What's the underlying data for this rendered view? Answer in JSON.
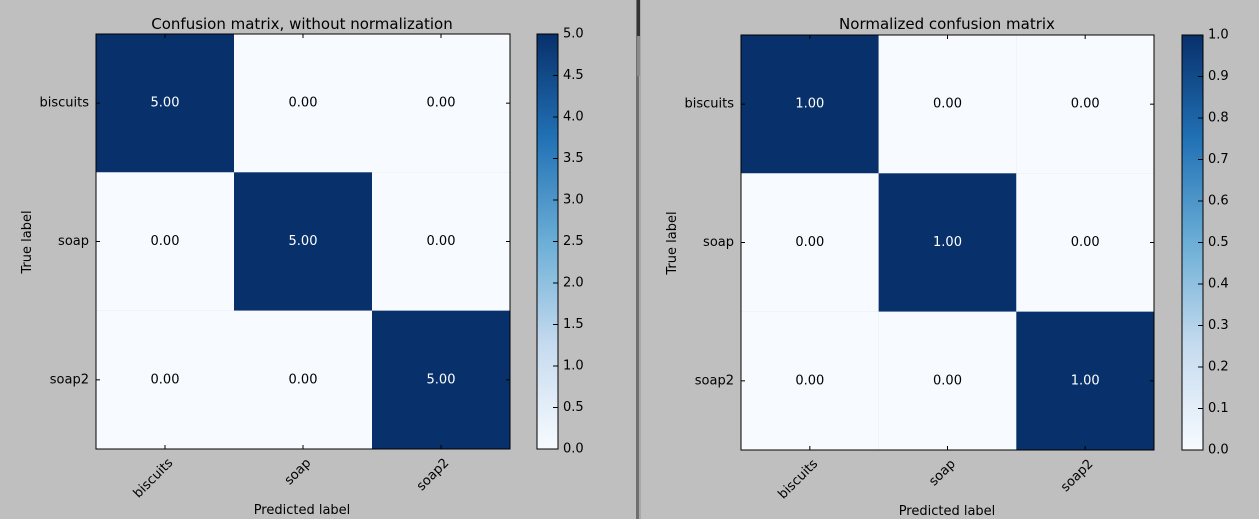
{
  "chart_data": [
    {
      "type": "heatmap",
      "title": "Confusion matrix, without normalization",
      "xlabel": "Predicted label",
      "ylabel": "True label",
      "categories_x": [
        "biscuits",
        "soap",
        "soap2"
      ],
      "categories_y": [
        "biscuits",
        "soap",
        "soap2"
      ],
      "values": [
        [
          5,
          0,
          0
        ],
        [
          0,
          5,
          0
        ],
        [
          0,
          0,
          5
        ]
      ],
      "cell_labels": [
        [
          "5.00",
          "0.00",
          "0.00"
        ],
        [
          "0.00",
          "5.00",
          "0.00"
        ],
        [
          "0.00",
          "0.00",
          "5.00"
        ]
      ],
      "colorbar": {
        "min": 0,
        "max": 5,
        "ticks": [
          "0.0",
          "0.5",
          "1.0",
          "1.5",
          "2.0",
          "2.5",
          "3.0",
          "3.5",
          "4.0",
          "4.5",
          "5.0"
        ]
      },
      "colormap": [
        "#f7fbff",
        "#c6dbef",
        "#6baed6",
        "#2171b5",
        "#08306b"
      ]
    },
    {
      "type": "heatmap",
      "title": "Normalized confusion matrix",
      "xlabel": "Predicted label",
      "ylabel": "True label",
      "categories_x": [
        "biscuits",
        "soap",
        "soap2"
      ],
      "categories_y": [
        "biscuits",
        "soap",
        "soap2"
      ],
      "values": [
        [
          1,
          0,
          0
        ],
        [
          0,
          1,
          0
        ],
        [
          0,
          0,
          1
        ]
      ],
      "cell_labels": [
        [
          "1.00",
          "0.00",
          "0.00"
        ],
        [
          "0.00",
          "1.00",
          "0.00"
        ],
        [
          "0.00",
          "0.00",
          "1.00"
        ]
      ],
      "colorbar": {
        "min": 0,
        "max": 1,
        "ticks": [
          "0.0",
          "0.1",
          "0.2",
          "0.3",
          "0.4",
          "0.5",
          "0.6",
          "0.7",
          "0.8",
          "0.9",
          "1.0"
        ]
      },
      "colormap": [
        "#f7fbff",
        "#c6dbef",
        "#6baed6",
        "#2171b5",
        "#08306b"
      ]
    }
  ]
}
